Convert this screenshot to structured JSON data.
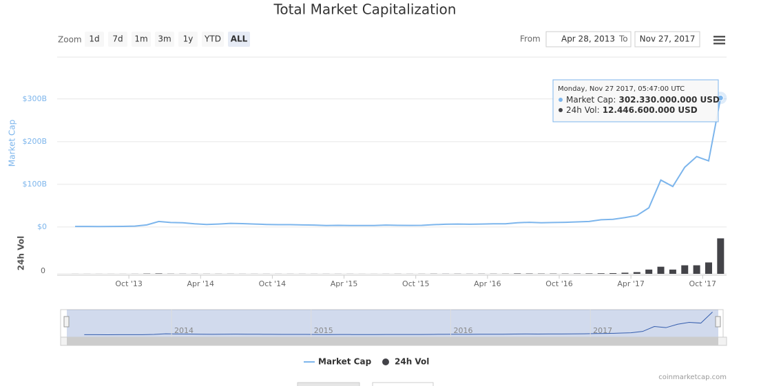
{
  "chart_data": {
    "type": "line",
    "title": "Total Market Capitalization",
    "zoom": {
      "label": "Zoom",
      "buttons": [
        "1d",
        "7d",
        "1m",
        "3m",
        "1y",
        "YTD",
        "ALL"
      ],
      "selected": "ALL"
    },
    "range": {
      "from_label": "From",
      "from": "Apr 28, 2013",
      "to_label": "To",
      "to": "Nov 27, 2017"
    },
    "x": [
      "2013-05",
      "2013-06",
      "2013-07",
      "2013-08",
      "2013-09",
      "2013-10",
      "2013-11",
      "2013-12",
      "2014-01",
      "2014-02",
      "2014-03",
      "2014-04",
      "2014-05",
      "2014-06",
      "2014-07",
      "2014-08",
      "2014-09",
      "2014-10",
      "2014-11",
      "2014-12",
      "2015-01",
      "2015-02",
      "2015-03",
      "2015-04",
      "2015-05",
      "2015-06",
      "2015-07",
      "2015-08",
      "2015-09",
      "2015-10",
      "2015-11",
      "2015-12",
      "2016-01",
      "2016-02",
      "2016-03",
      "2016-04",
      "2016-05",
      "2016-06",
      "2016-07",
      "2016-08",
      "2016-09",
      "2016-10",
      "2016-11",
      "2016-12",
      "2017-01",
      "2017-02",
      "2017-03",
      "2017-04",
      "2017-05",
      "2017-06",
      "2017-07",
      "2017-08",
      "2017-09",
      "2017-10",
      "2017-11"
    ],
    "xlim": [
      "2013-04",
      "2017-12"
    ],
    "xticks": [
      {
        "value": "2013-10",
        "label": "Oct '13"
      },
      {
        "value": "2014-04",
        "label": "Apr '14"
      },
      {
        "value": "2014-10",
        "label": "Oct '14"
      },
      {
        "value": "2015-04",
        "label": "Apr '15"
      },
      {
        "value": "2015-10",
        "label": "Oct '15"
      },
      {
        "value": "2016-04",
        "label": "Apr '16"
      },
      {
        "value": "2016-10",
        "label": "Oct '16"
      },
      {
        "value": "2017-04",
        "label": "Apr '17"
      },
      {
        "value": "2017-10",
        "label": "Oct '17"
      }
    ],
    "ylabel": "Market Cap",
    "ylim": [
      -13,
      398
    ],
    "yticks": [
      {
        "value": 0,
        "label": "$0"
      },
      {
        "value": 100,
        "label": "$100B"
      },
      {
        "value": 200,
        "label": "$200B"
      },
      {
        "value": 300,
        "label": "$300B"
      }
    ],
    "y2label": "24h Vol",
    "y2lim": [
      0,
      14
    ],
    "y2ticks": [
      0
    ],
    "grid": true,
    "series": [
      {
        "name": "Market Cap",
        "color": "#7cb5ec",
        "values": [
          1.4,
          1.3,
          1.1,
          1.4,
          1.6,
          2.2,
          5,
          13,
          10.5,
          10,
          7.5,
          6,
          7,
          8.5,
          8,
          7,
          6,
          5.5,
          5.5,
          5,
          4.5,
          3.5,
          4,
          3.5,
          3.5,
          3.5,
          4.5,
          4,
          3.7,
          4,
          5.5,
          6.5,
          7,
          6.5,
          7,
          7.5,
          7.5,
          10,
          11,
          10,
          10.5,
          11,
          12,
          13,
          17,
          18,
          22,
          27,
          45,
          110,
          95,
          140,
          165,
          155,
          302.33
        ]
      },
      {
        "name": "24h Vol",
        "color": "#434348",
        "axis": "y2",
        "values": [
          0.02,
          0.02,
          0.02,
          0.02,
          0.02,
          0.03,
          0.1,
          0.15,
          0.06,
          0.05,
          0.05,
          0.04,
          0.04,
          0.04,
          0.03,
          0.03,
          0.03,
          0.03,
          0.03,
          0.03,
          0.03,
          0.03,
          0.03,
          0.03,
          0.02,
          0.02,
          0.03,
          0.04,
          0.03,
          0.04,
          0.06,
          0.05,
          0.06,
          0.05,
          0.06,
          0.06,
          0.07,
          0.15,
          0.12,
          0.1,
          0.1,
          0.1,
          0.12,
          0.15,
          0.2,
          0.25,
          0.4,
          0.6,
          1.5,
          2.5,
          1.5,
          3,
          3,
          4,
          12.45
        ]
      }
    ],
    "tooltip": {
      "date": "Monday, Nov 27 2017, 05:47:00 UTC",
      "rows": [
        {
          "label": "Market Cap:",
          "value": "302.330.000.000 USD"
        },
        {
          "label": "24h Vol:",
          "value": "12.446.600.000 USD"
        }
      ]
    },
    "navigator": {
      "labels": [
        "2014",
        "2015",
        "2016",
        "2017"
      ]
    },
    "credit": "coinmarketcap.com"
  }
}
